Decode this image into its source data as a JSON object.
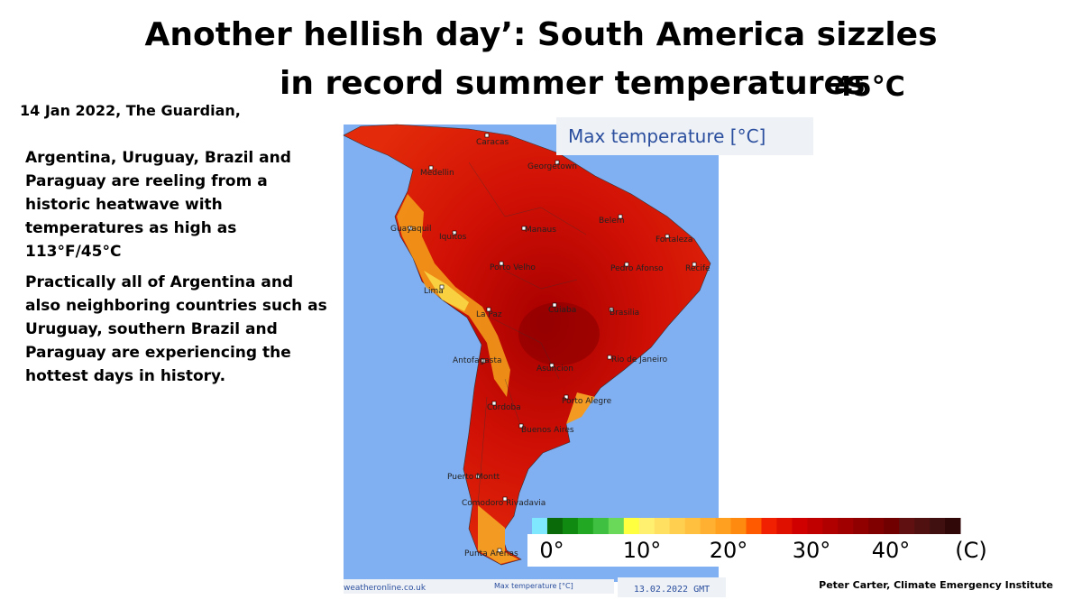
{
  "header": {
    "title_lines": [
      "Another hellish day’: South America sizzles",
      "in record summer temperatures"
    ],
    "title_temperature": "45°C"
  },
  "article": {
    "source": "14 Jan 2022, The Guardian,",
    "paragraphs": [
      [
        "Argentina, Uruguay, Brazil and",
        "Paraguay are reeling from a",
        "historic heatwave with",
        "temperatures as high as",
        "113°F/45°C"
      ],
      [
        "Practically all of Argentina and",
        "also neighboring countries such as",
        "Uruguay, southern Brazil and",
        "Paraguay are experiencing the",
        "hottest days in history."
      ]
    ]
  },
  "map": {
    "heading": "Max temperature [°C]",
    "cities": [
      "Caracas",
      "Georgetown",
      "Medellin",
      "Guayaquil",
      "Iquitos",
      "Manaus",
      "Belem",
      "Fortaleza",
      "Porto Velho",
      "Pedro Afonso",
      "Recife",
      "Lima",
      "La Paz",
      "Cuiaba",
      "Brasilia",
      "Antofagasta",
      "Asuncion",
      "Rio de Janeiro",
      "Porto Alegre",
      "Cordoba",
      "Buenos Aires",
      "Puerto Montt",
      "Comodoro Rivadavia",
      "Punta Arenas"
    ],
    "footer_site": "weatheronline.co.uk",
    "footer_caption": "Max temperature [°C]",
    "footer_date": "13.02.2022 GMT",
    "scale_labels": [
      "0°",
      "10°",
      "20°",
      "30°",
      "40°",
      "(C)"
    ]
  },
  "credit": "Peter Carter, Climate Emergency Institute"
}
